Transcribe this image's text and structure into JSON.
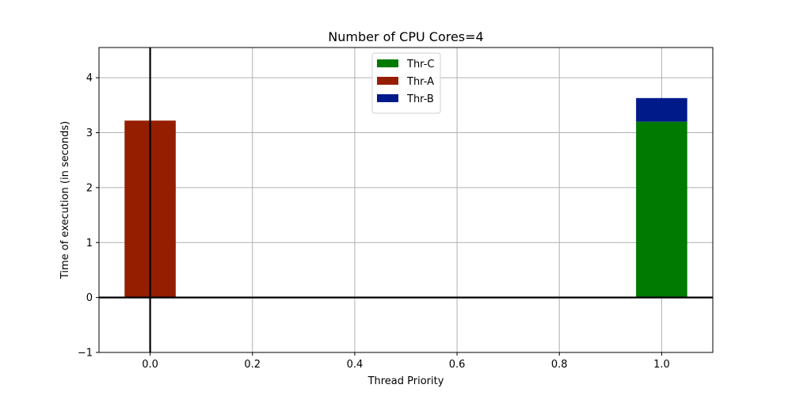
{
  "chart_data": {
    "type": "bar",
    "title": "Number of CPU Cores=4",
    "xlabel": "Thread Priority",
    "ylabel": "Time of execution (in seconds)",
    "xlim": [
      -0.1,
      1.1
    ],
    "ylim": [
      -1,
      4.55
    ],
    "x_ticks": [
      0.0,
      0.2,
      0.4,
      0.6,
      0.8,
      1.0
    ],
    "x_tick_labels": [
      "0.0",
      "0.2",
      "0.4",
      "0.6",
      "0.8",
      "1.0"
    ],
    "y_ticks": [
      -1,
      0,
      1,
      2,
      3,
      4
    ],
    "y_tick_labels": [
      "−1",
      "0",
      "1",
      "2",
      "3",
      "4"
    ],
    "bar_width": 0.1,
    "grid": true,
    "stacked": true,
    "reference_lines": {
      "x": 0,
      "y": 0
    },
    "legend_position": "top-center",
    "series": [
      {
        "name": "Thr-C",
        "color": "#007a00",
        "points": [
          {
            "x": 1.0,
            "bottom": 0,
            "value": 3.2
          }
        ]
      },
      {
        "name": "Thr-A",
        "color": "#961e00",
        "points": [
          {
            "x": 0.0,
            "bottom": 0,
            "value": 3.22
          }
        ]
      },
      {
        "name": "Thr-B",
        "color": "#001a8a",
        "points": [
          {
            "x": 1.0,
            "bottom": 3.2,
            "value": 0.43
          }
        ]
      }
    ]
  }
}
